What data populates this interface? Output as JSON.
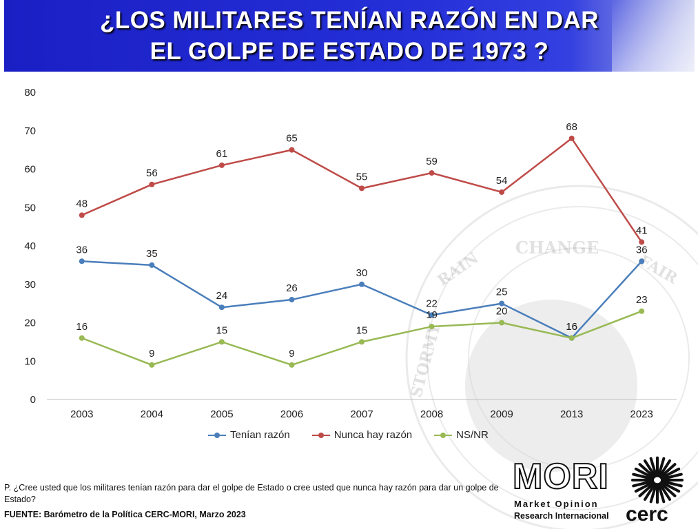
{
  "header": {
    "title_line1": "¿LOS MILITARES TENÍAN RAZÓN  EN DAR",
    "title_line2": "EL GOLPE DE ESTADO DE 1973 ?"
  },
  "chart_data": {
    "type": "line",
    "categories": [
      "2003",
      "2004",
      "2005",
      "2006",
      "2007",
      "2008",
      "2009",
      "2013",
      "2023"
    ],
    "ylim": [
      0,
      80
    ],
    "yticks": [
      0,
      10,
      20,
      30,
      40,
      50,
      60,
      70,
      80
    ],
    "grid": false,
    "legend_position": "bottom",
    "series": [
      {
        "name": "Tenían razón",
        "color": "#4a7ebb",
        "values": [
          36,
          35,
          24,
          26,
          30,
          22,
          25,
          16,
          36
        ]
      },
      {
        "name": "Nunca hay razón",
        "color": "#be4b48",
        "values": [
          48,
          56,
          61,
          65,
          55,
          59,
          54,
          68,
          41
        ]
      },
      {
        "name": "NS/NR",
        "color": "#98b954",
        "values": [
          16,
          9,
          15,
          9,
          15,
          19,
          20,
          16,
          23
        ]
      }
    ]
  },
  "footer": {
    "question": "P. ¿Cree usted que los militares tenían razón para dar el golpe de Estado o cree usted que nunca hay razón para dar un golpe de Estado?",
    "source": "FUENTE: Barómetro de la Política CERC-MORI, Marzo 2023"
  },
  "logos": {
    "mori": "MORI",
    "mori_sub1": "Market Opinion",
    "mori_sub2": "Research Internacional",
    "cerc": "cerc"
  },
  "watermark": {
    "words": [
      "CHANGE",
      "RAIN",
      "FAIR",
      "STORMY"
    ]
  }
}
